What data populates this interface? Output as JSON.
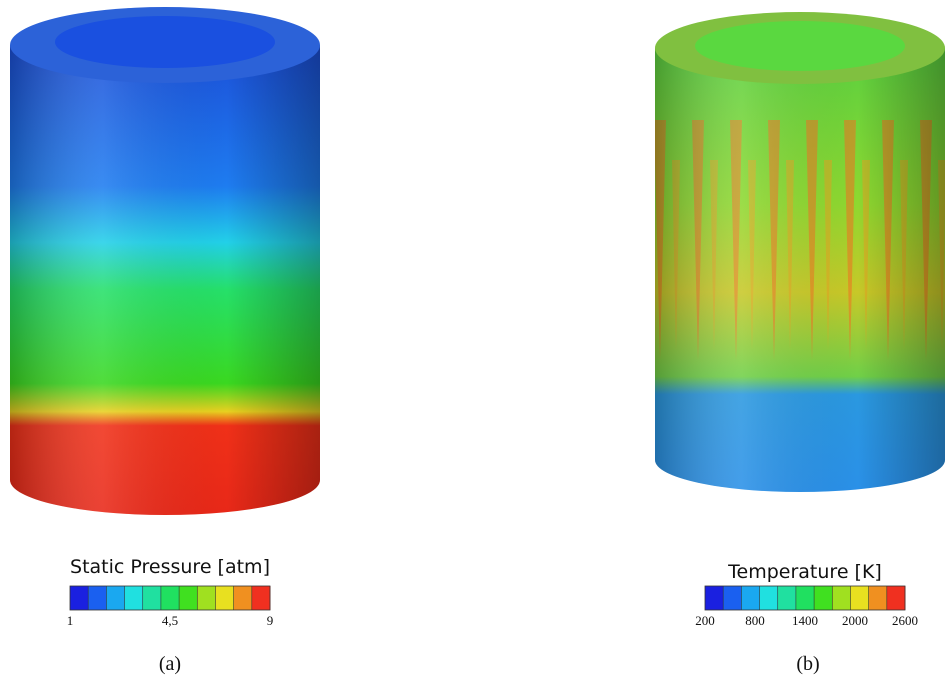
{
  "panels": [
    {
      "colorbar": {
        "title": "Static Pressure [atm]",
        "ticks": [
          "1",
          "4,5",
          "9"
        ]
      },
      "caption": "(a)"
    },
    {
      "colorbar": {
        "title": "Temperature [K]",
        "ticks": [
          "200",
          "800",
          "1400",
          "2000",
          "2600"
        ]
      },
      "caption": "(b)"
    }
  ]
}
